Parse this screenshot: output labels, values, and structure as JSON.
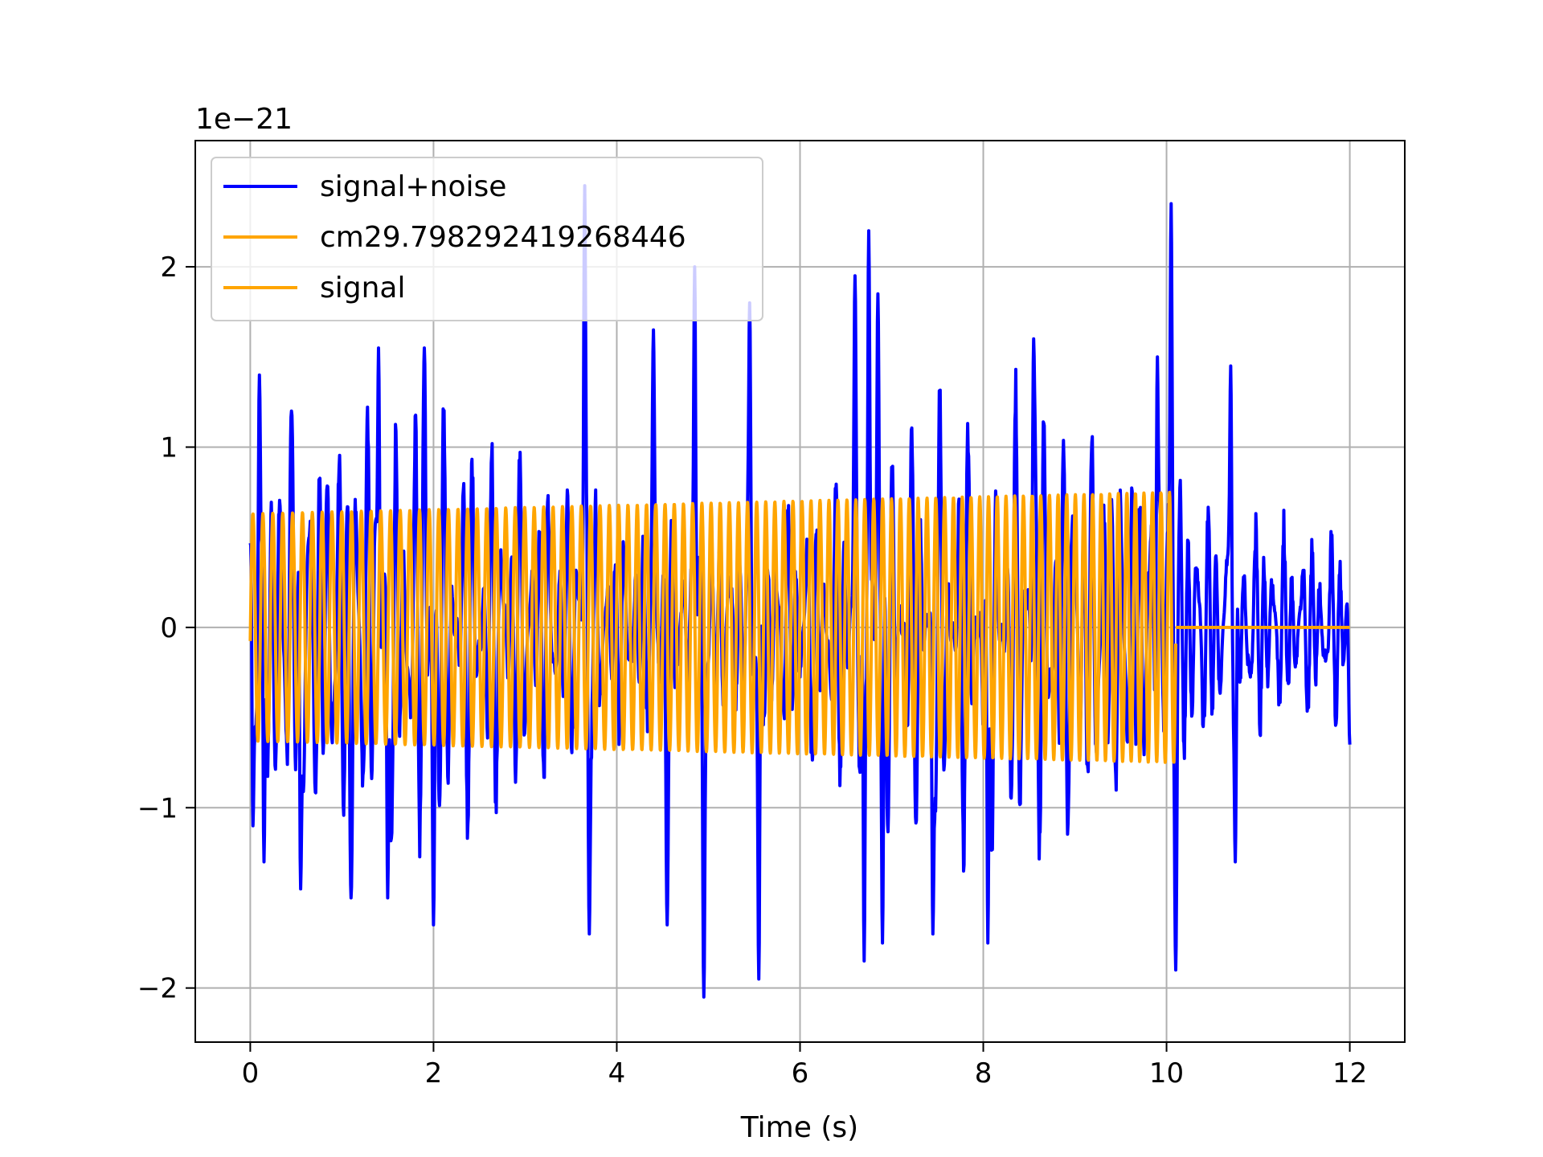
{
  "chart_data": {
    "type": "line",
    "title": "",
    "xlabel": "Time (s)",
    "ylabel": "",
    "y_offset_label": "1e−21",
    "xlim": [
      -0.6,
      12.6
    ],
    "ylim": [
      -2.3,
      2.7
    ],
    "x_ticks": [
      0,
      2,
      4,
      6,
      8,
      10,
      12
    ],
    "x_tick_labels": [
      "0",
      "2",
      "4",
      "6",
      "8",
      "10",
      "12"
    ],
    "y_ticks": [
      -2,
      -1,
      0,
      1,
      2
    ],
    "y_tick_labels": [
      "−2",
      "−1",
      "0",
      "1",
      "2"
    ],
    "grid": true,
    "legend_position": "top-left",
    "series": [
      {
        "name": "signal+noise",
        "color": "#0000ff",
        "style": "noisy oscillation",
        "x_range": [
          0,
          12
        ],
        "typical_amplitude": 1.0,
        "peaks": [
          {
            "x": 0.03,
            "y": -1.1
          },
          {
            "x": 0.1,
            "y": 1.4
          },
          {
            "x": 0.15,
            "y": -1.3
          },
          {
            "x": 0.45,
            "y": 1.2
          },
          {
            "x": 0.55,
            "y": -1.45
          },
          {
            "x": 1.1,
            "y": -1.5
          },
          {
            "x": 1.4,
            "y": 1.55
          },
          {
            "x": 1.5,
            "y": -1.5
          },
          {
            "x": 1.9,
            "y": 1.55
          },
          {
            "x": 2.0,
            "y": -1.65
          },
          {
            "x": 3.65,
            "y": 2.45
          },
          {
            "x": 3.7,
            "y": -1.7
          },
          {
            "x": 4.4,
            "y": 1.65
          },
          {
            "x": 4.55,
            "y": -1.65
          },
          {
            "x": 4.85,
            "y": 2.0
          },
          {
            "x": 4.95,
            "y": -2.05
          },
          {
            "x": 5.45,
            "y": 1.8
          },
          {
            "x": 5.55,
            "y": -1.95
          },
          {
            "x": 6.6,
            "y": 1.95
          },
          {
            "x": 6.7,
            "y": -1.85
          },
          {
            "x": 6.75,
            "y": 2.2
          },
          {
            "x": 6.85,
            "y": 1.85
          },
          {
            "x": 6.9,
            "y": -1.75
          },
          {
            "x": 7.45,
            "y": -1.7
          },
          {
            "x": 8.05,
            "y": -1.75
          },
          {
            "x": 8.55,
            "y": 1.6
          },
          {
            "x": 9.9,
            "y": 1.5
          },
          {
            "x": 10.05,
            "y": 2.35
          },
          {
            "x": 10.1,
            "y": -1.9
          },
          {
            "x": 10.7,
            "y": 1.45
          },
          {
            "x": 10.75,
            "y": -1.3
          },
          {
            "x": 12.0,
            "y": -0.65
          }
        ]
      },
      {
        "name": "cm29.798292419268446",
        "color": "#ffa500",
        "style": "chirp",
        "x_range": [
          0,
          10.1
        ],
        "amplitude_start": 0.63,
        "amplitude_end": 0.75,
        "cycles": 101
      },
      {
        "name": "signal",
        "color": "#ffa500",
        "style": "flat",
        "x_range": [
          10.1,
          12
        ],
        "value": 0
      }
    ]
  }
}
